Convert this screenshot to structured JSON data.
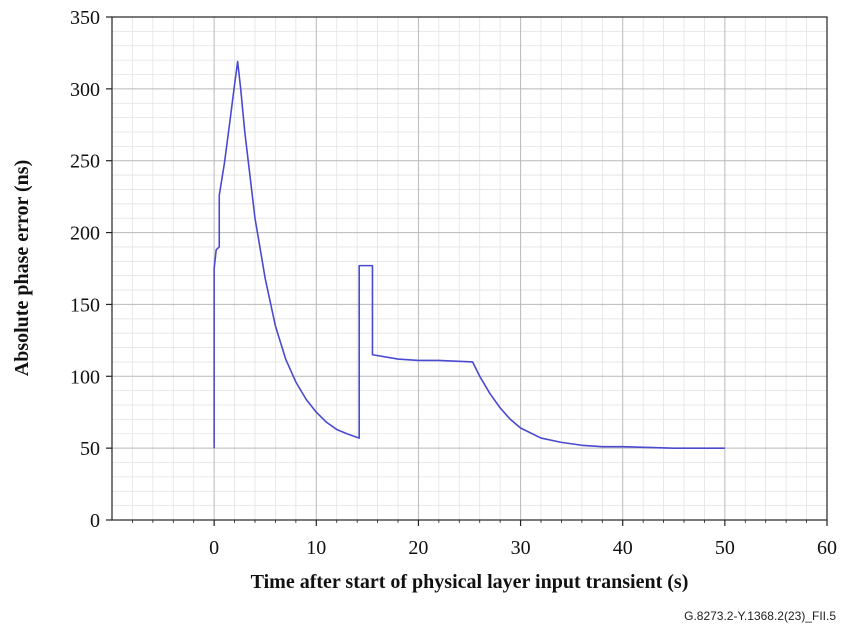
{
  "chart_data": {
    "type": "line",
    "title": "",
    "xlabel": "Time after start of physical layer input transient (s)",
    "ylabel": "Absolute phase error (ns)",
    "xlim": [
      -10,
      60
    ],
    "ylim": [
      0,
      350
    ],
    "x_ticks": [
      0,
      10,
      20,
      30,
      40,
      50,
      60
    ],
    "y_ticks": [
      0,
      50,
      100,
      150,
      200,
      250,
      300,
      350
    ],
    "x_tick_labels": [
      "0",
      "10",
      "20",
      "30",
      "40",
      "50",
      "60"
    ],
    "y_tick_labels": [
      "0",
      "50",
      "100",
      "150",
      "200",
      "250",
      "300",
      "350"
    ],
    "grid": true,
    "legend": "none",
    "series": [
      {
        "color": "#4a4ad0",
        "x": [
          0,
          0,
          0.2,
          0.5,
          0.5,
          1.0,
          1.5,
          2.0,
          2.3,
          2.6,
          3.0,
          3.5,
          4.0,
          5.0,
          6.0,
          7.0,
          8.0,
          9.0,
          10.0,
          11.0,
          12.0,
          13.0,
          14.2,
          14.2,
          15.5,
          15.5,
          18.0,
          20.0,
          22.0,
          25.3,
          26.0,
          27.0,
          28.0,
          29.0,
          30.0,
          32.0,
          34.0,
          36.0,
          38.0,
          40.0,
          45.0,
          50.0
        ],
        "y": [
          50,
          175,
          188,
          190,
          226,
          248,
          275,
          303,
          319,
          300,
          270,
          240,
          210,
          168,
          135,
          112,
          96,
          84,
          75,
          68,
          63,
          60,
          57,
          177,
          177,
          115,
          112,
          111,
          111,
          110,
          100,
          88,
          78,
          70,
          64,
          57,
          54,
          52,
          51,
          51,
          50,
          50
        ]
      }
    ],
    "figure_id": "G.8273.2-Y.1368.2(23)_FII.5"
  }
}
